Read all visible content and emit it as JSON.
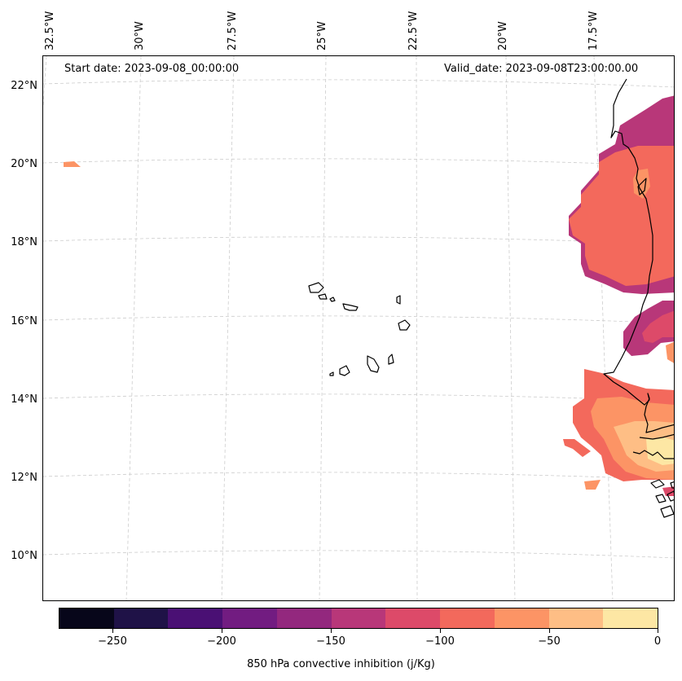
{
  "header": {
    "start_date": "Start date: 2023-09-08_00:00:00",
    "valid_date": "Valid_date: 2023-09-08T23:00:00.00"
  },
  "map": {
    "longitude_labels": [
      "32.5°W",
      "30°W",
      "27.5°W",
      "25°W",
      "22.5°W",
      "20°W",
      "17.5°W"
    ],
    "latitude_labels": [
      "22°N",
      "20°N",
      "18°N",
      "16°N",
      "14°N",
      "12°N",
      "10°N"
    ],
    "gridlines": "dashed light gray",
    "coastline_color": "#000000",
    "region": "Cabo Verde islands and West African coast (Senegal / Mauritania / Guinea-Bissau)"
  },
  "colorbar": {
    "title": "850 hPa convective inhibition (j/Kg)",
    "tick_labels": [
      "−250",
      "−200",
      "−150",
      "−100",
      "−50",
      "0"
    ],
    "bins": [
      {
        "range": [
          -275,
          -250
        ],
        "color": "#07061a"
      },
      {
        "range": [
          -250,
          -225
        ],
        "color": "#1f1247"
      },
      {
        "range": [
          -225,
          -200
        ],
        "color": "#4a1074"
      },
      {
        "range": [
          -200,
          -175
        ],
        "color": "#721c81"
      },
      {
        "range": [
          -175,
          -150
        ],
        "color": "#93287e"
      },
      {
        "range": [
          -150,
          -125
        ],
        "color": "#b83779"
      },
      {
        "range": [
          -125,
          -100
        ],
        "color": "#dd4a69"
      },
      {
        "range": [
          -100,
          -75
        ],
        "color": "#f3695c"
      },
      {
        "range": [
          -75,
          -50
        ],
        "color": "#fc9465"
      },
      {
        "range": [
          -50,
          -25
        ],
        "color": "#febe85"
      },
      {
        "range": [
          -25,
          0
        ],
        "color": "#fde7a4"
      }
    ]
  }
}
